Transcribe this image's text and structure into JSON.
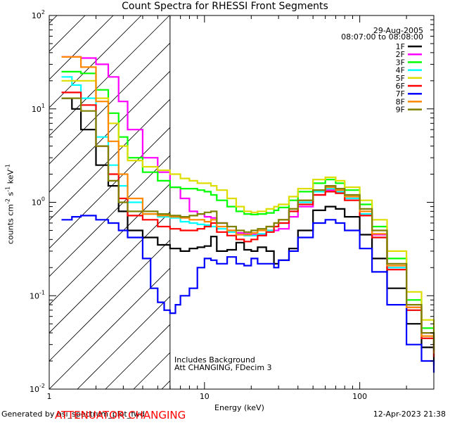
{
  "chart_data": {
    "type": "line",
    "title": "Count Spectra for RHESSI Front Segments",
    "xlabel": "Energy (keV)",
    "ylabel_parts": [
      "counts cm",
      "-2",
      " s",
      "-1",
      " keV",
      "-1"
    ],
    "xscale": "log",
    "yscale": "log",
    "xlim": [
      1,
      300
    ],
    "ylim": [
      0.01,
      100
    ],
    "x_ticks": [
      "1",
      "10",
      "100"
    ],
    "y_ticks": [
      {
        "base": "10",
        "exp": "-2"
      },
      {
        "base": "10",
        "exp": "-1"
      },
      {
        "base": "10",
        "exp": "0"
      },
      {
        "base": "10",
        "exp": "1"
      },
      {
        "base": "10",
        "exp": "2"
      }
    ],
    "date": "29-Aug-2005",
    "time_range": "08:07:00 to 08:08:00",
    "annotation_lines": [
      "Includes Background",
      "Att CHANGING, FDecim 3"
    ],
    "attenuator_note": "ATTENUATOR CHANGING",
    "hatched_region_x": [
      1,
      6
    ],
    "series": [
      {
        "name": "1F",
        "color": "#000000",
        "x": [
          1.2,
          1.4,
          1.6,
          2.0,
          2.4,
          2.8,
          3.2,
          4,
          5,
          6,
          7,
          8,
          9,
          10,
          11,
          12,
          14,
          16,
          18,
          20,
          22,
          25,
          28,
          30,
          35,
          40,
          50,
          60,
          70,
          80,
          100,
          120,
          150,
          200,
          250,
          300
        ],
        "y": [
          13,
          10,
          6,
          2.5,
          1.5,
          0.8,
          0.5,
          0.42,
          0.35,
          0.32,
          0.3,
          0.32,
          0.33,
          0.34,
          0.43,
          0.3,
          0.31,
          0.37,
          0.31,
          0.3,
          0.33,
          0.3,
          0.22,
          0.24,
          0.32,
          0.5,
          0.82,
          0.9,
          0.85,
          0.7,
          0.45,
          0.25,
          0.12,
          0.05,
          0.028,
          0.018
        ]
      },
      {
        "name": "2F",
        "color": "#ff00ff",
        "x": [
          1.2,
          1.4,
          1.6,
          2.0,
          2.4,
          2.8,
          3.2,
          4,
          5,
          6,
          7,
          8,
          9,
          10,
          11,
          12,
          14,
          16,
          18,
          20,
          22,
          25,
          28,
          30,
          35,
          40,
          50,
          60,
          70,
          80,
          100,
          120,
          150,
          200,
          250,
          300
        ],
        "y": [
          36,
          36,
          35,
          30,
          22,
          12,
          6,
          3,
          2.1,
          1.45,
          1.1,
          0.8,
          0.75,
          0.7,
          0.68,
          0.6,
          0.5,
          0.47,
          0.46,
          0.45,
          0.45,
          0.5,
          0.5,
          0.52,
          0.7,
          0.9,
          1.2,
          1.35,
          1.3,
          1.1,
          0.75,
          0.45,
          0.2,
          0.075,
          0.04,
          0.025
        ]
      },
      {
        "name": "3F",
        "color": "#00ff00",
        "x": [
          1.2,
          1.4,
          1.6,
          2.0,
          2.4,
          2.8,
          3.2,
          4,
          5,
          6,
          7,
          8,
          9,
          10,
          11,
          12,
          14,
          16,
          18,
          20,
          22,
          25,
          28,
          30,
          35,
          40,
          50,
          60,
          70,
          80,
          100,
          120,
          150,
          200,
          250,
          300
        ],
        "y": [
          25,
          25,
          24,
          16,
          9,
          5,
          3,
          2.1,
          1.7,
          1.45,
          1.4,
          1.4,
          1.35,
          1.3,
          1.2,
          1.05,
          0.9,
          0.8,
          0.75,
          0.74,
          0.75,
          0.77,
          0.82,
          0.88,
          1.05,
          1.3,
          1.6,
          1.75,
          1.6,
          1.35,
          0.95,
          0.55,
          0.25,
          0.09,
          0.045,
          0.03
        ]
      },
      {
        "name": "4F",
        "color": "#00ffff",
        "x": [
          1.2,
          1.4,
          1.6,
          2.0,
          2.4,
          2.8,
          3.2,
          4,
          5,
          6,
          7,
          8,
          9,
          10,
          11,
          12,
          14,
          16,
          18,
          20,
          22,
          25,
          28,
          30,
          35,
          40,
          50,
          60,
          70,
          80,
          100,
          120,
          150,
          200,
          250,
          300
        ],
        "y": [
          22,
          18,
          13,
          5,
          2.5,
          1.5,
          1.0,
          0.75,
          0.7,
          0.68,
          0.62,
          0.6,
          0.58,
          0.57,
          0.55,
          0.52,
          0.48,
          0.45,
          0.44,
          0.44,
          0.46,
          0.5,
          0.55,
          0.6,
          0.8,
          1.0,
          1.3,
          1.4,
          1.3,
          1.1,
          0.75,
          0.42,
          0.2,
          0.07,
          0.035,
          0.022
        ]
      },
      {
        "name": "5F",
        "color": "#dddd00",
        "x": [
          1.2,
          1.4,
          1.6,
          2.0,
          2.4,
          2.8,
          3.2,
          4,
          5,
          6,
          7,
          8,
          9,
          10,
          11,
          12,
          14,
          16,
          18,
          20,
          22,
          25,
          28,
          30,
          35,
          40,
          50,
          60,
          70,
          80,
          100,
          120,
          150,
          200,
          250,
          300
        ],
        "y": [
          20,
          20,
          20,
          13,
          7,
          4,
          2.8,
          2.4,
          2.2,
          2.0,
          1.8,
          1.7,
          1.6,
          1.6,
          1.5,
          1.35,
          1.1,
          0.9,
          0.8,
          0.78,
          0.8,
          0.85,
          0.9,
          0.95,
          1.15,
          1.4,
          1.75,
          1.85,
          1.7,
          1.45,
          1.05,
          0.65,
          0.3,
          0.11,
          0.055,
          0.035
        ]
      },
      {
        "name": "6F",
        "color": "#ff0000",
        "x": [
          1.2,
          1.4,
          1.6,
          2.0,
          2.4,
          2.8,
          3.2,
          4,
          5,
          6,
          7,
          8,
          9,
          10,
          11,
          12,
          14,
          16,
          18,
          20,
          22,
          25,
          28,
          30,
          35,
          40,
          50,
          60,
          70,
          80,
          100,
          120,
          150,
          200,
          250,
          300
        ],
        "y": [
          15,
          15,
          11,
          4,
          2,
          1.1,
          0.72,
          0.65,
          0.55,
          0.52,
          0.5,
          0.5,
          0.52,
          0.55,
          0.6,
          0.48,
          0.44,
          0.4,
          0.38,
          0.4,
          0.44,
          0.48,
          0.55,
          0.6,
          0.8,
          0.95,
          1.2,
          1.3,
          1.25,
          1.05,
          0.72,
          0.42,
          0.19,
          0.07,
          0.035,
          0.022
        ]
      },
      {
        "name": "7F",
        "color": "#0000ff",
        "x": [
          1.2,
          1.4,
          1.6,
          2.0,
          2.4,
          2.8,
          3.2,
          4,
          4.5,
          5,
          5.5,
          6,
          6.5,
          7,
          8,
          9,
          10,
          11,
          12,
          14,
          16,
          18,
          20,
          22,
          25,
          28,
          30,
          35,
          40,
          50,
          60,
          70,
          80,
          100,
          120,
          150,
          200,
          250,
          300
        ],
        "y": [
          0.65,
          0.7,
          0.72,
          0.65,
          0.6,
          0.5,
          0.42,
          0.25,
          0.12,
          0.085,
          0.07,
          0.065,
          0.08,
          0.1,
          0.12,
          0.2,
          0.25,
          0.24,
          0.22,
          0.26,
          0.22,
          0.21,
          0.25,
          0.22,
          0.22,
          0.2,
          0.24,
          0.3,
          0.42,
          0.6,
          0.65,
          0.6,
          0.5,
          0.32,
          0.18,
          0.08,
          0.03,
          0.02,
          0.015
        ]
      },
      {
        "name": "8F",
        "color": "#ff8800",
        "x": [
          1.2,
          1.4,
          1.6,
          2.0,
          2.4,
          2.8,
          3.2,
          4,
          5,
          6,
          7,
          8,
          9,
          10,
          11,
          12,
          14,
          16,
          18,
          20,
          22,
          25,
          28,
          30,
          35,
          40,
          50,
          60,
          70,
          80,
          100,
          120,
          150,
          200,
          250,
          300
        ],
        "y": [
          36,
          36,
          28,
          12,
          4.5,
          2,
          1.1,
          0.75,
          0.72,
          0.7,
          0.68,
          0.65,
          0.65,
          0.62,
          0.65,
          0.55,
          0.5,
          0.45,
          0.45,
          0.47,
          0.5,
          0.55,
          0.6,
          0.65,
          0.85,
          1.05,
          1.35,
          1.45,
          1.35,
          1.15,
          0.8,
          0.46,
          0.21,
          0.075,
          0.037,
          0.024
        ]
      },
      {
        "name": "9F",
        "color": "#808000",
        "x": [
          1.2,
          1.4,
          1.6,
          2.0,
          2.4,
          2.8,
          3.2,
          4,
          5,
          6,
          7,
          8,
          9,
          10,
          11,
          12,
          14,
          16,
          18,
          20,
          22,
          25,
          28,
          30,
          35,
          40,
          50,
          60,
          70,
          80,
          100,
          120,
          150,
          200,
          250,
          300
        ],
        "y": [
          13,
          13,
          9.5,
          4,
          1.7,
          1.0,
          0.8,
          0.8,
          0.75,
          0.72,
          0.7,
          0.72,
          0.75,
          0.78,
          0.8,
          0.6,
          0.55,
          0.5,
          0.48,
          0.5,
          0.52,
          0.55,
          0.6,
          0.65,
          0.85,
          1.05,
          1.35,
          1.5,
          1.4,
          1.2,
          0.85,
          0.5,
          0.22,
          0.08,
          0.04,
          0.026
        ]
      }
    ]
  },
  "footer": {
    "generated_by": "Generated by hsi_spectrum_plot_fwd",
    "timestamp": "12-Apr-2023 21:38"
  }
}
